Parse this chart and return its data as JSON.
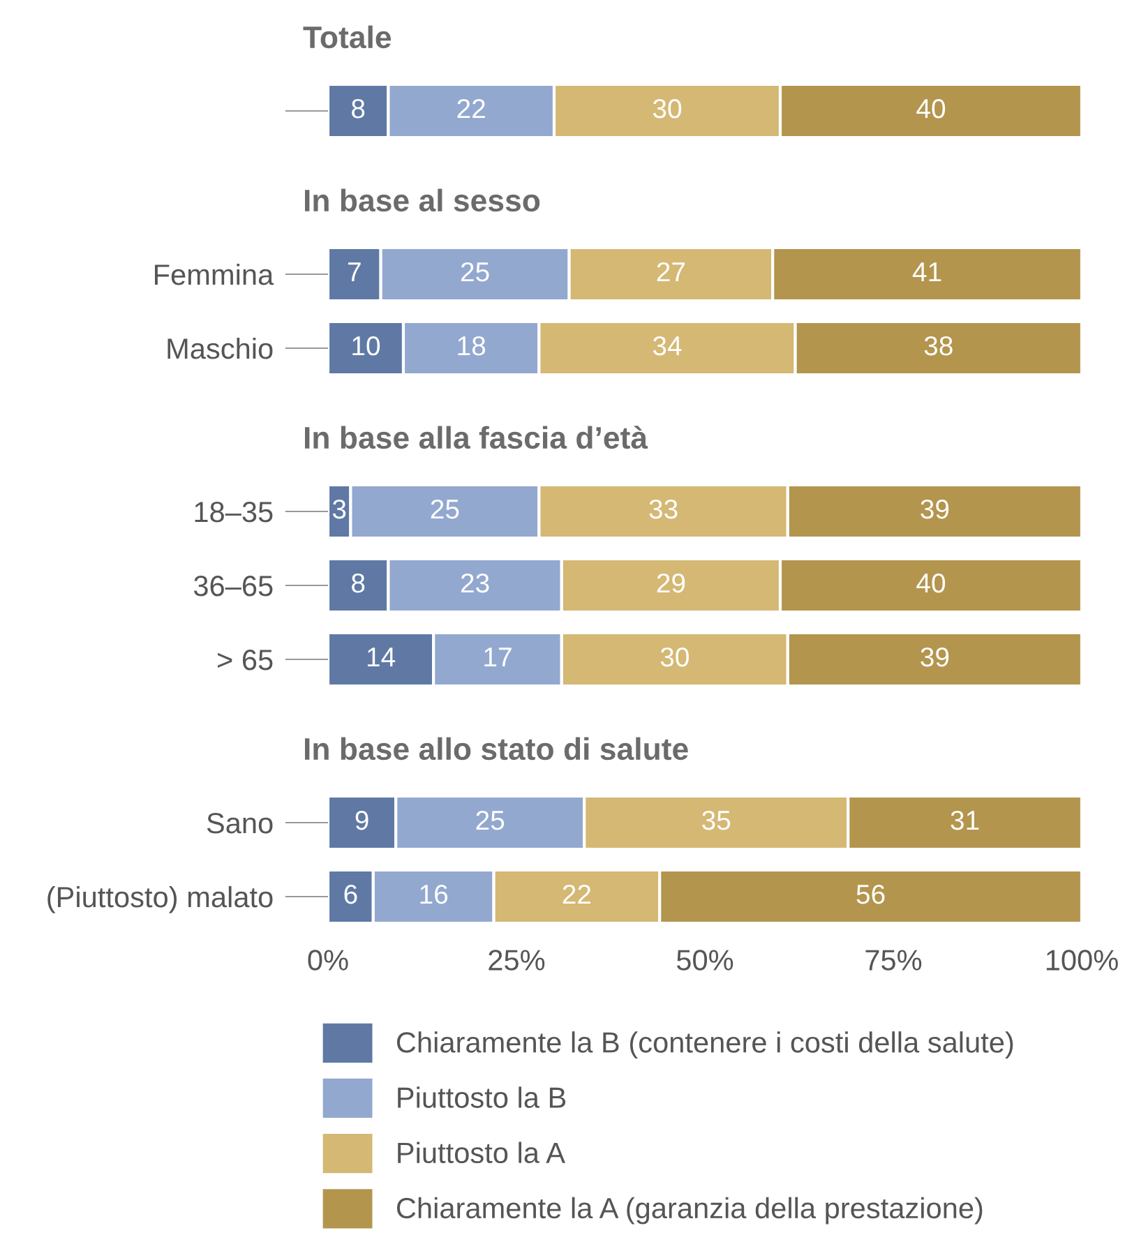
{
  "chart_data": [
    {
      "type": "bar",
      "title": "Totale",
      "orientation": "horizontal",
      "stacked": true,
      "data_labels": true,
      "tick_labels": "y",
      "legend": false,
      "categories": [
        null
      ],
      "series": [
        {
          "color": "#5f79a4",
          "values": [
            8
          ]
        },
        {
          "color": "#93a8cf",
          "values": [
            22
          ]
        },
        {
          "color": "#d4b874",
          "values": [
            30
          ]
        },
        {
          "color": "#b3954e",
          "values": [
            40
          ]
        }
      ],
      "xlim": [
        0,
        100
      ]
    },
    {
      "type": "bar",
      "title": "In base al sesso",
      "orientation": "horizontal",
      "stacked": true,
      "data_labels": true,
      "tick_labels": "y",
      "legend": false,
      "categories": [
        "Femmina",
        "Maschio"
      ],
      "series": [
        {
          "color": "#5f79a4",
          "values": [
            7,
            10
          ]
        },
        {
          "color": "#93a8cf",
          "values": [
            25,
            18
          ]
        },
        {
          "color": "#d4b874",
          "values": [
            27,
            34
          ]
        },
        {
          "color": "#b3954e",
          "values": [
            41,
            38
          ]
        }
      ],
      "xlim": [
        0,
        100
      ]
    },
    {
      "type": "bar",
      "title": "In base alla fascia d’età",
      "orientation": "horizontal",
      "stacked": true,
      "data_labels": true,
      "tick_labels": "y",
      "legend": false,
      "categories": [
        "18–35",
        "36–65",
        "> 65"
      ],
      "series": [
        {
          "color": "#5f79a4",
          "values": [
            3,
            8,
            14
          ]
        },
        {
          "color": "#93a8cf",
          "values": [
            25,
            23,
            17
          ]
        },
        {
          "color": "#d4b874",
          "values": [
            33,
            29,
            30
          ]
        },
        {
          "color": "#b3954e",
          "values": [
            39,
            40,
            39
          ]
        }
      ],
      "xlim": [
        0,
        100
      ]
    },
    {
      "type": "bar",
      "title": "In base allo stato di salute",
      "orientation": "horizontal",
      "stacked": true,
      "data_labels": true,
      "legend": "bottom",
      "categories": [
        "Sano",
        "(Piuttosto) malato"
      ],
      "series": [
        {
          "name": "Chiaramente la B (contenere i costi della salute)",
          "color": "#5f79a4",
          "values": [
            9,
            6
          ]
        },
        {
          "name": "Piuttosto la B",
          "color": "#93a8cf",
          "values": [
            25,
            16
          ]
        },
        {
          "name": "Piuttosto la A",
          "color": "#d4b874",
          "values": [
            35,
            22
          ]
        },
        {
          "name": "Chiaramente la A (garanzia della prestazione)",
          "color": "#b3954e",
          "values": [
            31,
            56
          ]
        }
      ],
      "xlim": [
        0,
        100
      ],
      "xticks": [
        {
          "value": 0,
          "label": "0%"
        },
        {
          "value": 25,
          "label": "25%"
        },
        {
          "value": 50,
          "label": "50%"
        },
        {
          "value": 75,
          "label": "75%"
        },
        {
          "value": 100,
          "label": "100%"
        }
      ]
    }
  ]
}
